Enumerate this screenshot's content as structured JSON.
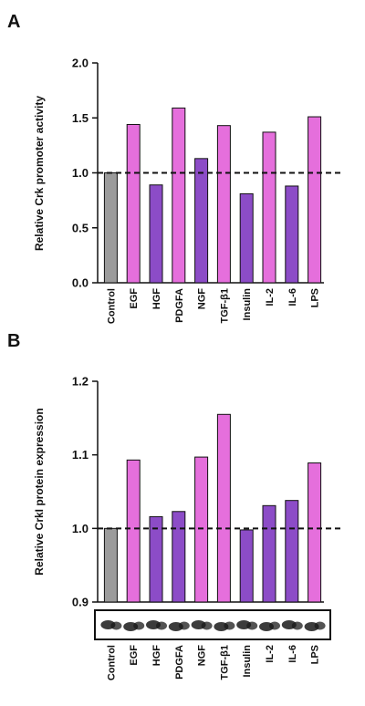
{
  "colors": {
    "control": "#9b9b9b",
    "up": "#e56fdc",
    "down": "#8c4cc7",
    "axis": "#111111",
    "blot_bg": "#ffffff",
    "band": "#1a1a1a"
  },
  "chart_data": [
    {
      "panel": "A",
      "type": "bar",
      "ylabel": "Relative Crk promoter activity",
      "ylim": [
        0,
        2.0
      ],
      "yticks": [
        "0.0",
        "0.5",
        "1.0",
        "1.5",
        "2.0"
      ],
      "reference_line": 1.0,
      "categories": [
        "Control",
        "EGF",
        "HGF",
        "PDGFA",
        "NGF",
        "TGF-β1",
        "Insulin",
        "IL-2",
        "IL-6",
        "LPS"
      ],
      "values": [
        1.0,
        1.44,
        0.89,
        1.59,
        1.13,
        1.43,
        0.81,
        1.37,
        0.88,
        1.51
      ],
      "bar_colors": [
        "control",
        "up",
        "down",
        "up",
        "down",
        "up",
        "down",
        "up",
        "down",
        "up"
      ]
    },
    {
      "panel": "B",
      "type": "bar",
      "ylabel": "Relative CrkI protein expression",
      "ylim": [
        0.9,
        1.2
      ],
      "yticks": [
        "0.9",
        "1.0",
        "1.1",
        "1.2"
      ],
      "reference_line": 1.0,
      "categories": [
        "Control",
        "EGF",
        "HGF",
        "PDGFA",
        "NGF",
        "TGF-β1",
        "Insulin",
        "IL-2",
        "IL-6",
        "LPS"
      ],
      "values": [
        1.0,
        1.093,
        1.016,
        1.023,
        1.097,
        1.155,
        0.998,
        1.031,
        1.038,
        1.089
      ],
      "bar_colors": [
        "control",
        "up",
        "down",
        "down",
        "up",
        "up",
        "down",
        "down",
        "down",
        "up"
      ]
    }
  ]
}
